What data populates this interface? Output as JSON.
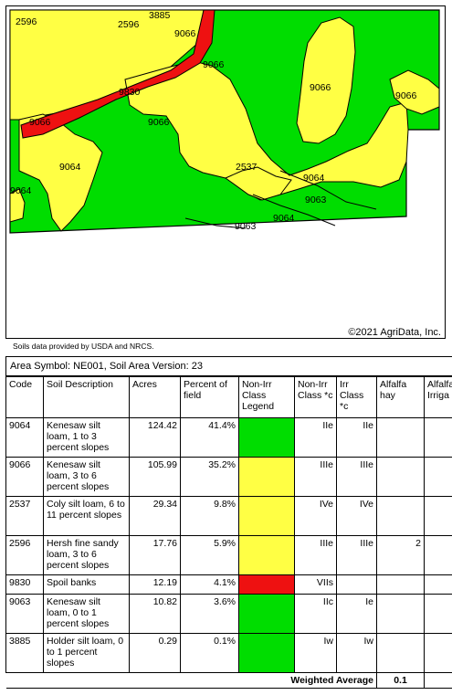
{
  "map": {
    "copyright": "©2021 AgriData, Inc.",
    "colors": {
      "green": "#00dd00",
      "yellow": "#ffff44",
      "red": "#ee1111"
    },
    "labels": [
      {
        "id": "l1",
        "text": "2596"
      },
      {
        "id": "l2",
        "text": "2596"
      },
      {
        "id": "l3",
        "text": "3885"
      },
      {
        "id": "l4",
        "text": "9066"
      },
      {
        "id": "l5",
        "text": "9066"
      },
      {
        "id": "l6",
        "text": "9830"
      },
      {
        "id": "l7",
        "text": "9066"
      },
      {
        "id": "l8",
        "text": "9066"
      },
      {
        "id": "l9",
        "text": "9066"
      },
      {
        "id": "l10",
        "text": "9066"
      },
      {
        "id": "l11",
        "text": "9064"
      },
      {
        "id": "l12",
        "text": "9064"
      },
      {
        "id": "l13",
        "text": "2537"
      },
      {
        "id": "l14",
        "text": "9064"
      },
      {
        "id": "l15",
        "text": "9063"
      },
      {
        "id": "l16",
        "text": "9064"
      },
      {
        "id": "l17",
        "text": "9063"
      }
    ]
  },
  "source_note": "Soils data provided by USDA and NRCS.",
  "area_symbol": "Area Symbol: NE001, Soil Area Version: 23",
  "table": {
    "headers": {
      "code": "Code",
      "desc": "Soil Description",
      "acres": "Acres",
      "pct": "Percent of field",
      "legend": "Non-Irr Class Legend",
      "nonirr": "Non-Irr Class *c",
      "irr": "Irr Class *c",
      "alfalfa": "Alfalfa hay",
      "alfalfa_irr": "Alfalfa Irriga"
    },
    "rows": [
      {
        "code": "9064",
        "desc": "Kenesaw silt loam, 1 to 3 percent slopes",
        "acres": "124.42",
        "pct": "41.4%",
        "legend_color": "#00dd00",
        "nonirr": "IIe",
        "irr": "IIe",
        "alfalfa": ""
      },
      {
        "code": "9066",
        "desc": "Kenesaw silt loam, 3 to 6 percent slopes",
        "acres": "105.99",
        "pct": "35.2%",
        "legend_color": "#ffff44",
        "nonirr": "IIIe",
        "irr": "IIIe",
        "alfalfa": ""
      },
      {
        "code": "2537",
        "desc": "Coly silt loam, 6 to 11 percent slopes",
        "acres": "29.34",
        "pct": "9.8%",
        "legend_color": "#ffff44",
        "nonirr": "IVe",
        "irr": "IVe",
        "alfalfa": ""
      },
      {
        "code": "2596",
        "desc": "Hersh fine sandy loam, 3 to 6 percent slopes",
        "acres": "17.76",
        "pct": "5.9%",
        "legend_color": "#ffff44",
        "nonirr": "IIIe",
        "irr": "IIIe",
        "alfalfa": "2"
      },
      {
        "code": "9830",
        "desc": "Spoil banks",
        "acres": "12.19",
        "pct": "4.1%",
        "legend_color": "#ee1111",
        "nonirr": "VIIs",
        "irr": "",
        "alfalfa": ""
      },
      {
        "code": "9063",
        "desc": "Kenesaw silt loam, 0 to 1 percent slopes",
        "acres": "10.82",
        "pct": "3.6%",
        "legend_color": "#00dd00",
        "nonirr": "IIc",
        "irr": "Ie",
        "alfalfa": ""
      },
      {
        "code": "3885",
        "desc": "Holder silt loam, 0 to 1 percent slopes",
        "acres": "0.29",
        "pct": "0.1%",
        "legend_color": "#00dd00",
        "nonirr": "Iw",
        "irr": "Iw",
        "alfalfa": ""
      }
    ],
    "weighted_label": "Weighted Average",
    "weighted_value": "0.1"
  }
}
